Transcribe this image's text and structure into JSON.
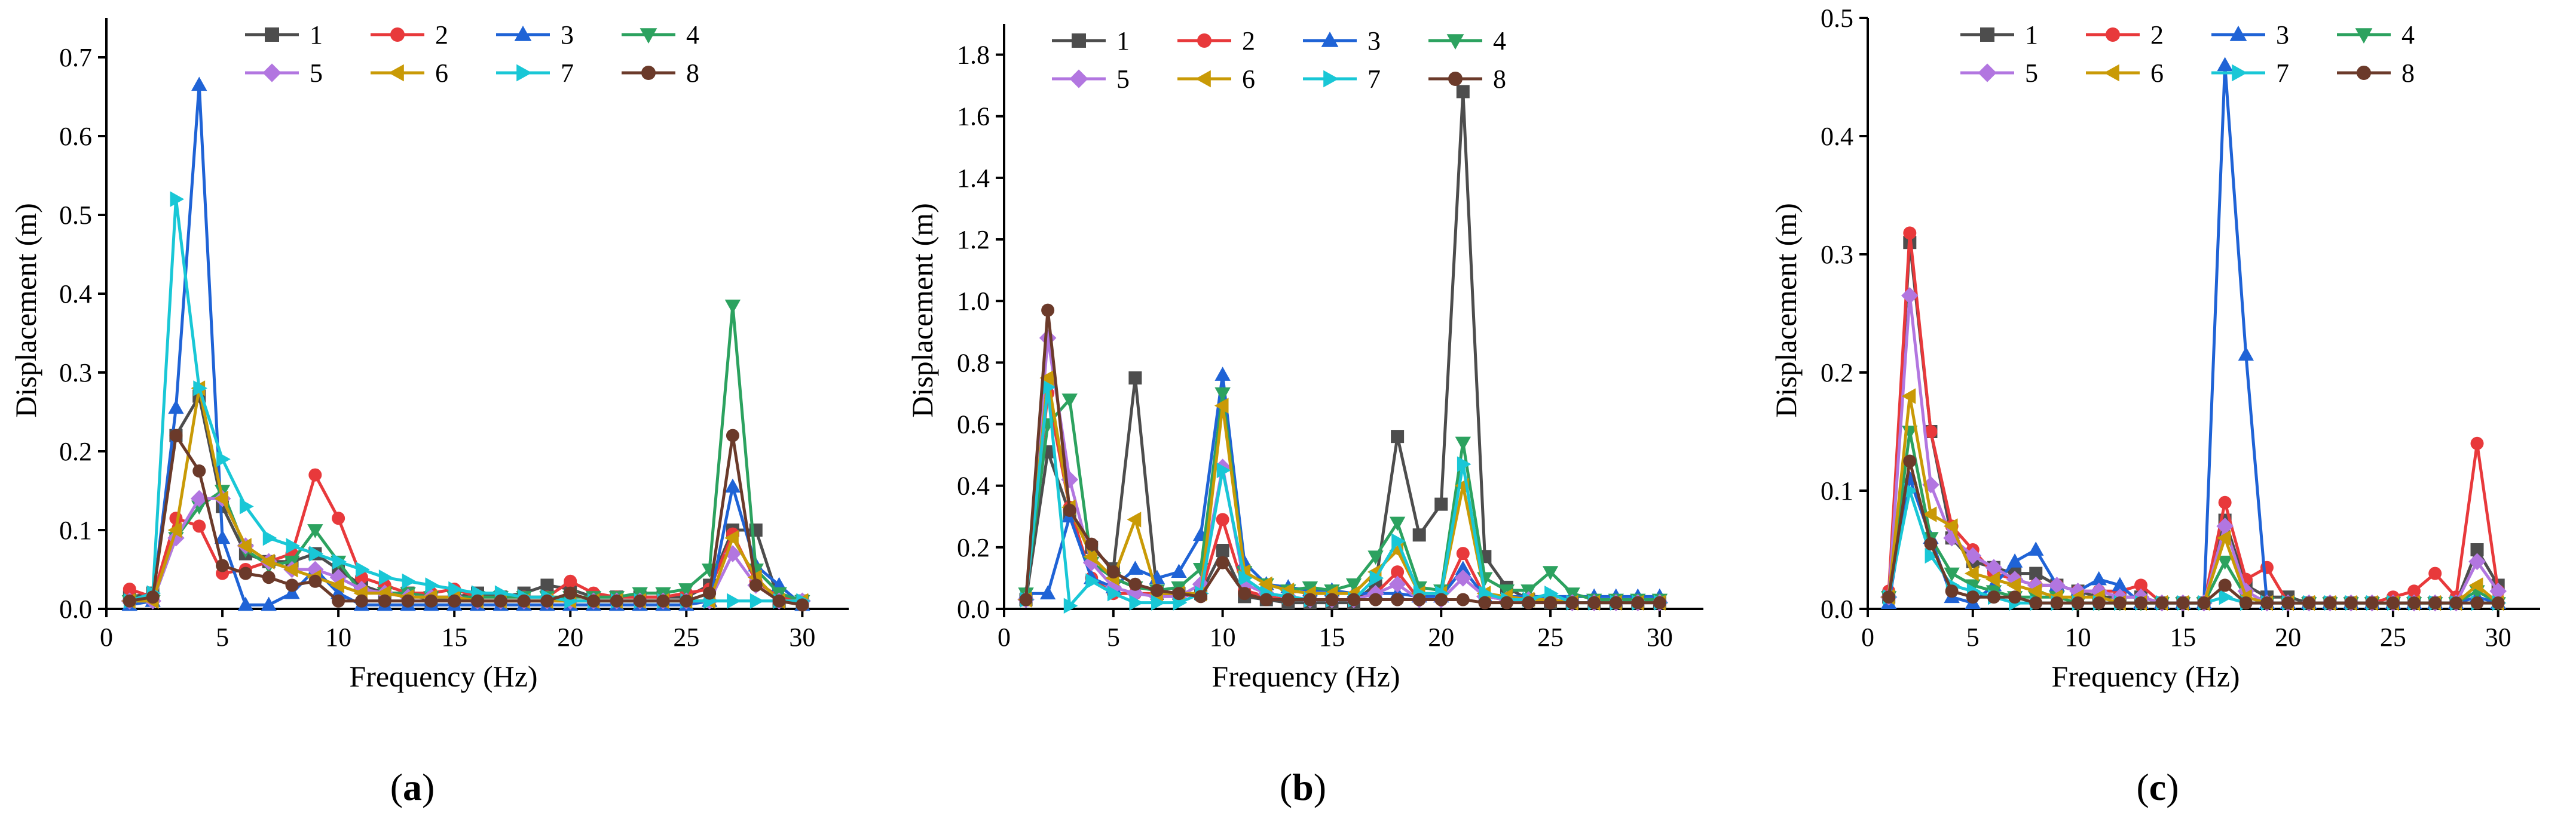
{
  "figure": {
    "panel_labels": [
      "(a)",
      "(b)",
      "(c)"
    ]
  },
  "chart_data": [
    {
      "type": "line",
      "panel": "(a)",
      "xlabel": "Frequency (Hz)",
      "ylabel": "Displacement (m)",
      "xlim": [
        0,
        32
      ],
      "ylim": [
        0,
        0.75
      ],
      "xticks": [
        0,
        5,
        10,
        15,
        20,
        25,
        30
      ],
      "yticks": [
        0.0,
        0.1,
        0.2,
        0.3,
        0.4,
        0.5,
        0.6,
        0.7
      ],
      "ytick_decimals": 1,
      "x": [
        1,
        2,
        3,
        4,
        5,
        6,
        7,
        8,
        9,
        10,
        11,
        12,
        13,
        14,
        15,
        16,
        17,
        18,
        19,
        20,
        21,
        22,
        23,
        24,
        25,
        26,
        27,
        28,
        29,
        30
      ],
      "legend_location": "top",
      "series": [
        {
          "name": "1",
          "marker": "square",
          "color": "#4d4d4d",
          "values": [
            0.015,
            0.02,
            0.22,
            0.27,
            0.13,
            0.07,
            0.06,
            0.06,
            0.07,
            0.05,
            0.03,
            0.02,
            0.02,
            0.01,
            0.015,
            0.02,
            0.015,
            0.02,
            0.03,
            0.025,
            0.015,
            0.015,
            0.015,
            0.015,
            0.015,
            0.03,
            0.1,
            0.1,
            0.01,
            0.01
          ]
        },
        {
          "name": "2",
          "marker": "circle",
          "color": "#e8393b",
          "values": [
            0.025,
            0.015,
            0.115,
            0.105,
            0.045,
            0.05,
            0.06,
            0.07,
            0.17,
            0.115,
            0.04,
            0.03,
            0.02,
            0.02,
            0.025,
            0.015,
            0.015,
            0.015,
            0.015,
            0.035,
            0.02,
            0.015,
            0.015,
            0.015,
            0.02,
            0.025,
            0.095,
            0.035,
            0.015,
            0.01
          ]
        },
        {
          "name": "3",
          "marker": "triangle-up",
          "color": "#1f63d6",
          "values": [
            0.005,
            0.01,
            0.255,
            0.665,
            0.09,
            0.005,
            0.005,
            0.02,
            0.05,
            0.02,
            0.005,
            0.005,
            0.005,
            0.005,
            0.005,
            0.005,
            0.005,
            0.005,
            0.005,
            0.005,
            0.005,
            0.005,
            0.005,
            0.005,
            0.005,
            0.01,
            0.155,
            0.055,
            0.03,
            0.005
          ]
        },
        {
          "name": "4",
          "marker": "triangle-down",
          "color": "#2ca25f",
          "values": [
            0.01,
            0.01,
            0.09,
            0.13,
            0.15,
            0.075,
            0.055,
            0.06,
            0.1,
            0.06,
            0.02,
            0.02,
            0.02,
            0.015,
            0.015,
            0.015,
            0.015,
            0.015,
            0.015,
            0.015,
            0.015,
            0.015,
            0.02,
            0.02,
            0.025,
            0.05,
            0.385,
            0.05,
            0.02,
            0.01
          ]
        },
        {
          "name": "5",
          "marker": "diamond",
          "color": "#b276e0",
          "values": [
            0.01,
            0.01,
            0.09,
            0.14,
            0.14,
            0.08,
            0.06,
            0.05,
            0.05,
            0.04,
            0.025,
            0.02,
            0.015,
            0.015,
            0.015,
            0.01,
            0.01,
            0.01,
            0.01,
            0.01,
            0.01,
            0.01,
            0.01,
            0.01,
            0.01,
            0.01,
            0.07,
            0.03,
            0.01,
            0.01
          ]
        },
        {
          "name": "6",
          "marker": "triangle-left",
          "color": "#c99a06",
          "values": [
            0.01,
            0.01,
            0.1,
            0.28,
            0.14,
            0.08,
            0.06,
            0.05,
            0.04,
            0.03,
            0.02,
            0.02,
            0.015,
            0.015,
            0.015,
            0.01,
            0.01,
            0.01,
            0.01,
            0.01,
            0.01,
            0.01,
            0.01,
            0.01,
            0.01,
            0.01,
            0.09,
            0.04,
            0.01,
            0.01
          ]
        },
        {
          "name": "7",
          "marker": "triangle-right",
          "color": "#19c7d6",
          "values": [
            0.01,
            0.02,
            0.52,
            0.28,
            0.19,
            0.13,
            0.09,
            0.08,
            0.07,
            0.06,
            0.05,
            0.04,
            0.035,
            0.03,
            0.025,
            0.02,
            0.02,
            0.015,
            0.015,
            0.01,
            0.01,
            0.01,
            0.01,
            0.01,
            0.01,
            0.01,
            0.01,
            0.01,
            0.01,
            0.01
          ]
        },
        {
          "name": "8",
          "marker": "circle",
          "color": "#6b3a2a",
          "values": [
            0.01,
            0.015,
            0.22,
            0.175,
            0.055,
            0.045,
            0.04,
            0.03,
            0.035,
            0.01,
            0.01,
            0.01,
            0.01,
            0.01,
            0.01,
            0.01,
            0.01,
            0.01,
            0.01,
            0.02,
            0.01,
            0.01,
            0.01,
            0.01,
            0.01,
            0.02,
            0.22,
            0.03,
            0.01,
            0.005
          ]
        }
      ]
    },
    {
      "type": "line",
      "panel": "(b)",
      "xlabel": "Frequency (Hz)",
      "ylabel": "Displacement (m)",
      "xlim": [
        0,
        32
      ],
      "ylim": [
        0,
        1.9
      ],
      "xticks": [
        0,
        5,
        10,
        15,
        20,
        25,
        30
      ],
      "yticks": [
        0.0,
        0.2,
        0.4,
        0.6,
        0.8,
        1.0,
        1.2,
        1.4,
        1.6,
        1.8
      ],
      "ytick_decimals": 1,
      "x": [
        1,
        2,
        3,
        4,
        5,
        6,
        7,
        8,
        9,
        10,
        11,
        12,
        13,
        14,
        15,
        16,
        17,
        18,
        19,
        20,
        21,
        22,
        23,
        24,
        25,
        26,
        27,
        28,
        29,
        30
      ],
      "legend_location": "top",
      "series": [
        {
          "name": "1",
          "marker": "square",
          "color": "#4d4d4d",
          "values": [
            0.03,
            0.51,
            0.31,
            0.2,
            0.13,
            0.75,
            0.05,
            0.05,
            0.05,
            0.19,
            0.04,
            0.03,
            0.02,
            0.02,
            0.02,
            0.02,
            0.08,
            0.56,
            0.24,
            0.34,
            1.68,
            0.17,
            0.07,
            0.03,
            0.02,
            0.02,
            0.02,
            0.02,
            0.02,
            0.02
          ]
        },
        {
          "name": "2",
          "marker": "circle",
          "color": "#e8393b",
          "values": [
            0.03,
            0.7,
            0.33,
            0.1,
            0.05,
            0.05,
            0.05,
            0.04,
            0.05,
            0.29,
            0.06,
            0.04,
            0.03,
            0.03,
            0.03,
            0.03,
            0.05,
            0.12,
            0.03,
            0.03,
            0.18,
            0.04,
            0.03,
            0.03,
            0.03,
            0.02,
            0.02,
            0.02,
            0.02,
            0.02
          ]
        },
        {
          "name": "3",
          "marker": "triangle-up",
          "color": "#1f63d6",
          "values": [
            0.05,
            0.05,
            0.3,
            0.1,
            0.07,
            0.13,
            0.1,
            0.12,
            0.24,
            0.76,
            0.15,
            0.08,
            0.07,
            0.06,
            0.06,
            0.05,
            0.05,
            0.05,
            0.04,
            0.04,
            0.13,
            0.04,
            0.04,
            0.04,
            0.04,
            0.04,
            0.04,
            0.04,
            0.04,
            0.04
          ]
        },
        {
          "name": "4",
          "marker": "triangle-down",
          "color": "#2ca25f",
          "values": [
            0.05,
            0.6,
            0.68,
            0.15,
            0.1,
            0.07,
            0.06,
            0.07,
            0.13,
            0.7,
            0.12,
            0.08,
            0.06,
            0.07,
            0.06,
            0.08,
            0.17,
            0.28,
            0.07,
            0.06,
            0.54,
            0.1,
            0.06,
            0.06,
            0.12,
            0.05,
            0.03,
            0.03,
            0.03,
            0.03
          ]
        },
        {
          "name": "5",
          "marker": "diamond",
          "color": "#b276e0",
          "values": [
            0.03,
            0.88,
            0.42,
            0.15,
            0.07,
            0.05,
            0.04,
            0.04,
            0.08,
            0.46,
            0.08,
            0.05,
            0.04,
            0.03,
            0.03,
            0.03,
            0.05,
            0.08,
            0.03,
            0.03,
            0.1,
            0.04,
            0.03,
            0.03,
            0.03,
            0.02,
            0.02,
            0.02,
            0.02,
            0.02
          ]
        },
        {
          "name": "6",
          "marker": "triangle-left",
          "color": "#c99a06",
          "values": [
            0.03,
            0.75,
            0.33,
            0.17,
            0.1,
            0.29,
            0.05,
            0.05,
            0.05,
            0.66,
            0.12,
            0.08,
            0.06,
            0.05,
            0.05,
            0.05,
            0.12,
            0.19,
            0.05,
            0.05,
            0.4,
            0.05,
            0.04,
            0.03,
            0.03,
            0.02,
            0.02,
            0.02,
            0.02,
            0.02
          ]
        },
        {
          "name": "7",
          "marker": "triangle-right",
          "color": "#19c7d6",
          "values": [
            0.03,
            0.72,
            0.01,
            0.09,
            0.05,
            0.02,
            0.02,
            0.02,
            0.05,
            0.45,
            0.1,
            0.05,
            0.04,
            0.03,
            0.03,
            0.03,
            0.1,
            0.22,
            0.05,
            0.05,
            0.47,
            0.05,
            0.03,
            0.03,
            0.05,
            0.02,
            0.02,
            0.02,
            0.02,
            0.02
          ]
        },
        {
          "name": "8",
          "marker": "circle",
          "color": "#6b3a2a",
          "values": [
            0.03,
            0.97,
            0.32,
            0.21,
            0.12,
            0.08,
            0.06,
            0.05,
            0.04,
            0.15,
            0.05,
            0.03,
            0.03,
            0.03,
            0.03,
            0.03,
            0.03,
            0.03,
            0.03,
            0.03,
            0.03,
            0.02,
            0.02,
            0.02,
            0.02,
            0.02,
            0.02,
            0.02,
            0.02,
            0.02
          ]
        }
      ]
    },
    {
      "type": "line",
      "panel": "(c)",
      "xlabel": "Frequency (Hz)",
      "ylabel": "Displacement (m)",
      "xlim": [
        0,
        32
      ],
      "ylim": [
        0,
        0.5
      ],
      "xticks": [
        0,
        5,
        10,
        15,
        20,
        25,
        30
      ],
      "yticks": [
        0.0,
        0.1,
        0.2,
        0.3,
        0.4,
        0.5
      ],
      "ytick_decimals": 1,
      "x": [
        1,
        2,
        3,
        4,
        5,
        6,
        7,
        8,
        9,
        10,
        11,
        12,
        13,
        14,
        15,
        16,
        17,
        18,
        19,
        20,
        21,
        22,
        23,
        24,
        25,
        26,
        27,
        28,
        29,
        30
      ],
      "legend_location": "top",
      "series": [
        {
          "name": "1",
          "marker": "square",
          "color": "#4d4d4d",
          "values": [
            0.01,
            0.31,
            0.15,
            0.06,
            0.04,
            0.035,
            0.03,
            0.03,
            0.02,
            0.015,
            0.01,
            0.01,
            0.01,
            0.005,
            0.005,
            0.005,
            0.075,
            0.02,
            0.01,
            0.01,
            0.005,
            0.005,
            0.005,
            0.005,
            0.005,
            0.005,
            0.005,
            0.005,
            0.05,
            0.02
          ]
        },
        {
          "name": "2",
          "marker": "circle",
          "color": "#e8393b",
          "values": [
            0.015,
            0.318,
            0.15,
            0.07,
            0.05,
            0.03,
            0.025,
            0.02,
            0.02,
            0.015,
            0.015,
            0.015,
            0.02,
            0.005,
            0.005,
            0.005,
            0.09,
            0.025,
            0.035,
            0.005,
            0.005,
            0.005,
            0.005,
            0.005,
            0.01,
            0.015,
            0.03,
            0.01,
            0.14,
            0.015
          ]
        },
        {
          "name": "3",
          "marker": "triangle-up",
          "color": "#1f63d6",
          "values": [
            0.005,
            0.11,
            0.06,
            0.01,
            0.005,
            0.02,
            0.04,
            0.05,
            0.02,
            0.015,
            0.025,
            0.02,
            0.005,
            0.005,
            0.005,
            0.005,
            0.46,
            0.215,
            0.005,
            0.005,
            0.005,
            0.005,
            0.005,
            0.005,
            0.005,
            0.005,
            0.005,
            0.005,
            0.01,
            0.005
          ]
        },
        {
          "name": "4",
          "marker": "triangle-down",
          "color": "#2ca25f",
          "values": [
            0.01,
            0.15,
            0.06,
            0.03,
            0.02,
            0.015,
            0.01,
            0.01,
            0.01,
            0.005,
            0.005,
            0.005,
            0.005,
            0.005,
            0.005,
            0.005,
            0.04,
            0.01,
            0.005,
            0.005,
            0.005,
            0.005,
            0.005,
            0.005,
            0.005,
            0.005,
            0.005,
            0.005,
            0.015,
            0.005
          ]
        },
        {
          "name": "5",
          "marker": "diamond",
          "color": "#b276e0",
          "values": [
            0.01,
            0.265,
            0.105,
            0.06,
            0.045,
            0.035,
            0.025,
            0.02,
            0.02,
            0.015,
            0.015,
            0.01,
            0.01,
            0.005,
            0.005,
            0.005,
            0.07,
            0.015,
            0.005,
            0.005,
            0.005,
            0.005,
            0.005,
            0.005,
            0.005,
            0.005,
            0.005,
            0.005,
            0.04,
            0.015
          ]
        },
        {
          "name": "6",
          "marker": "triangle-left",
          "color": "#c99a06",
          "values": [
            0.01,
            0.18,
            0.08,
            0.07,
            0.03,
            0.025,
            0.02,
            0.015,
            0.01,
            0.01,
            0.01,
            0.005,
            0.005,
            0.005,
            0.005,
            0.005,
            0.06,
            0.01,
            0.005,
            0.005,
            0.005,
            0.005,
            0.005,
            0.005,
            0.005,
            0.005,
            0.005,
            0.005,
            0.02,
            0.005
          ]
        },
        {
          "name": "7",
          "marker": "triangle-right",
          "color": "#19c7d6",
          "values": [
            0.01,
            0.1,
            0.045,
            0.02,
            0.015,
            0.01,
            0.005,
            0.005,
            0.005,
            0.005,
            0.005,
            0.005,
            0.005,
            0.005,
            0.005,
            0.005,
            0.01,
            0.005,
            0.005,
            0.005,
            0.005,
            0.005,
            0.005,
            0.005,
            0.005,
            0.005,
            0.005,
            0.005,
            0.005,
            0.005
          ]
        },
        {
          "name": "8",
          "marker": "circle",
          "color": "#6b3a2a",
          "values": [
            0.01,
            0.125,
            0.055,
            0.015,
            0.01,
            0.01,
            0.01,
            0.005,
            0.005,
            0.005,
            0.005,
            0.005,
            0.005,
            0.005,
            0.005,
            0.005,
            0.02,
            0.005,
            0.005,
            0.005,
            0.005,
            0.005,
            0.005,
            0.005,
            0.005,
            0.005,
            0.005,
            0.005,
            0.005,
            0.005
          ]
        }
      ]
    }
  ]
}
